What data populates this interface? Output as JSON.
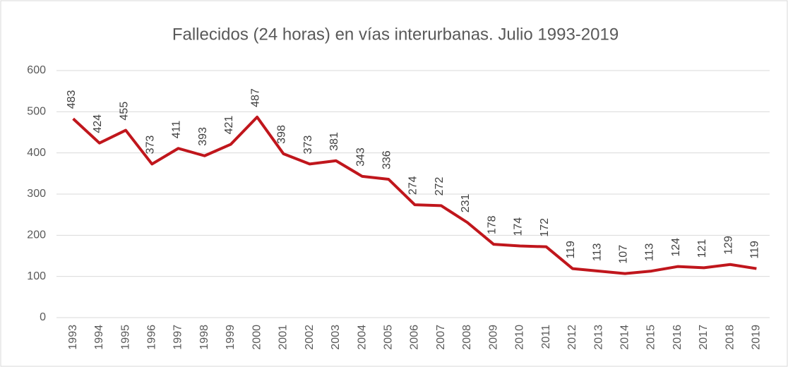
{
  "chart_data": {
    "type": "line",
    "title": "Fallecidos (24 horas) en vías interurbanas. Julio 1993-2019",
    "categories": [
      "1993",
      "1994",
      "1995",
      "1996",
      "1997",
      "1998",
      "1999",
      "2000",
      "2001",
      "2002",
      "2003",
      "2004",
      "2005",
      "2006",
      "2007",
      "2008",
      "2009",
      "2010",
      "2011",
      "2012",
      "2013",
      "2014",
      "2015",
      "2016",
      "2017",
      "2018",
      "2019"
    ],
    "series": [
      {
        "name": "Fallecidos",
        "color": "#c0161c",
        "values": [
          483,
          424,
          455,
          373,
          411,
          393,
          421,
          487,
          398,
          373,
          381,
          343,
          336,
          274,
          272,
          231,
          178,
          174,
          172,
          119,
          113,
          107,
          113,
          124,
          121,
          129,
          119
        ]
      }
    ],
    "ylim": [
      0,
      600
    ],
    "yticks": [
      0,
      100,
      200,
      300,
      400,
      500,
      600
    ],
    "grid": true
  }
}
